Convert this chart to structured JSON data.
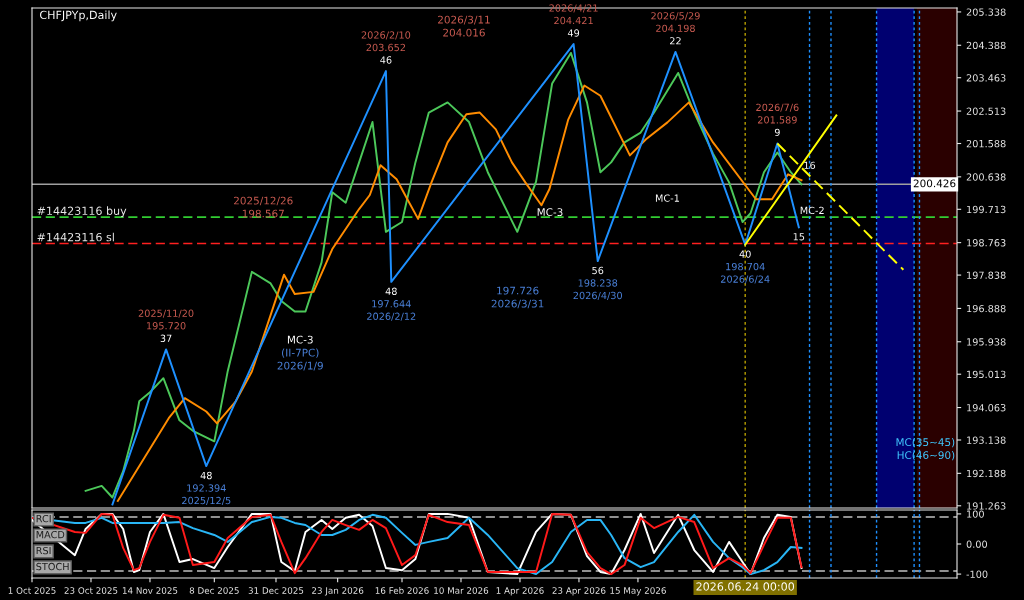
{
  "chart_data": [
    {
      "type": "line",
      "title": "CHFJPYp,Daily",
      "x": [
        "2025-10-21",
        "2025-10-27",
        "2025-10-31",
        "2025-11-04",
        "2025-11-08",
        "2025-11-10",
        "2025-11-14",
        "2025-11-19",
        "2025-11-25",
        "2025-11-30",
        "2025-12-08",
        "2025-12-13",
        "2025-12-22",
        "2025-12-29",
        "2026-01-02",
        "2026-01-07",
        "2026-01-11",
        "2026-01-17",
        "2026-01-21",
        "2026-01-26",
        "2026-01-31",
        "2026-02-05",
        "2026-02-10",
        "2026-02-16",
        "2026-02-21",
        "2026-02-26",
        "2026-03-05",
        "2026-03-13",
        "2026-03-20",
        "2026-03-31",
        "2026-04-07",
        "2026-04-13",
        "2026-04-20",
        "2026-04-26",
        "2026-05-01",
        "2026-05-05",
        "2026-05-10",
        "2026-05-16",
        "2026-05-21",
        "2026-05-30",
        "2026-06-05",
        "2026-06-12",
        "2026-06-18",
        "2026-06-23",
        "2026-06-26",
        "2026-07-01",
        "2026-07-06",
        "2026-07-11",
        "2026-07-15"
      ],
      "series": [
        {
          "color": "#4cc85a",
          "values": [
            191.69,
            191.83,
            191.5,
            192.25,
            193.4,
            194.24,
            194.5,
            194.9,
            193.7,
            193.4,
            193.1,
            195.1,
            197.93,
            197.6,
            197.1,
            196.8,
            196.8,
            198.2,
            200.2,
            199.9,
            201.05,
            202.2,
            199.07,
            199.35,
            201.05,
            202.47,
            202.76,
            202.2,
            200.77,
            199.07,
            200.5,
            203.3,
            204.17,
            202.76,
            200.77,
            201.05,
            201.62,
            201.9,
            202.47,
            203.6,
            202.47,
            201.3,
            200.48,
            199.35,
            199.6,
            200.77,
            201.33,
            200.77,
            200.426
          ]
        },
        {
          "color": "#ff8c00",
          "x": [
            "2025-11-02",
            "2025-11-21",
            "2025-11-27",
            "2025-12-05",
            "2025-12-09",
            "2025-12-16",
            "2025-12-22",
            "2026-01-03",
            "2026-01-07",
            "2026-01-14",
            "2026-01-21",
            "2026-01-31",
            "2026-02-04",
            "2026-02-08",
            "2026-02-14",
            "2026-02-18",
            "2026-02-22",
            "2026-02-27",
            "2026-03-05",
            "2026-03-12",
            "2026-03-17",
            "2026-03-23",
            "2026-03-29",
            "2026-04-03",
            "2026-04-09",
            "2026-04-12",
            "2026-04-19",
            "2026-04-25",
            "2026-05-01",
            "2026-05-12",
            "2026-05-18",
            "2026-05-26",
            "2026-06-03",
            "2026-06-12",
            "2026-06-28",
            "2026-07-04",
            "2026-07-10",
            "2026-07-15"
          ],
          "values": [
            191.4,
            193.76,
            194.33,
            193.95,
            193.61,
            194.24,
            195.09,
            197.85,
            197.3,
            197.36,
            198.58,
            199.72,
            200.12,
            200.97,
            200.57,
            200.0,
            199.44,
            200.48,
            201.62,
            202.42,
            202.47,
            201.99,
            201.05,
            200.48,
            199.83,
            200.29,
            202.27,
            203.24,
            202.95,
            201.25,
            201.71,
            202.19,
            202.76,
            201.62,
            200.0,
            200.0,
            200.71,
            200.54
          ]
        },
        {
          "color": "#1e90ff",
          "x": [
            "2025-10-31",
            "2025-11-20",
            "2025-12-05",
            "2026-02-10",
            "2026-02-12",
            "2026-04-21",
            "2026-04-30",
            "2026-05-29",
            "2026-06-24",
            "2026-07-06",
            "2026-07-14"
          ],
          "values": [
            191.3,
            195.72,
            192.394,
            203.652,
            197.644,
            204.421,
            198.238,
            204.198,
            198.704,
            201.589,
            199.2
          ]
        },
        {
          "color": "#ffff00",
          "x": [
            "2026-06-24",
            "2026-07-28"
          ],
          "values": [
            198.704,
            202.39
          ]
        },
        {
          "color": "#ffff00",
          "line_style": "dashed",
          "x": [
            "2026-07-06",
            "2026-08-22"
          ],
          "values": [
            201.589,
            197.99
          ]
        }
      ],
      "xlim": [
        "2025-10-01",
        "2026-09-11"
      ],
      "ylim": [
        191.2,
        205.45
      ],
      "yticks": [
        205.338,
        204.388,
        203.463,
        202.513,
        201.588,
        200.638,
        199.713,
        198.763,
        197.838,
        196.888,
        195.938,
        195.013,
        194.063,
        193.138,
        192.188,
        191.263
      ],
      "tick_labels": "y",
      "grid": false,
      "ref_lines": [
        {
          "axis": "y",
          "value": 200.426,
          "label": "200.426",
          "color": "#a0a0a0",
          "line_style": "solid"
        },
        {
          "axis": "y",
          "value": 199.49,
          "label": "#14423116 buy",
          "color": "#32cd32",
          "line_style": "dashed"
        },
        {
          "axis": "y",
          "value": 198.74,
          "label": "#14423116 sl",
          "color": "#ff2020",
          "line_style": "dashed"
        },
        {
          "axis": "x",
          "value": "2026-06-24",
          "color": "#b8a000",
          "line_style": "dotted"
        },
        {
          "axis": "x",
          "value": "2026-07-18",
          "color": "#1e90ff",
          "line_style": "dotted"
        },
        {
          "axis": "x",
          "value": "2026-07-26",
          "color": "#1e90ff",
          "line_style": "dotted"
        },
        {
          "axis": "x",
          "value": "2026-08-12",
          "color": "#1e90ff",
          "line_style": "dotted"
        },
        {
          "axis": "x",
          "value": "2026-08-26",
          "color": "#1e90ff",
          "line_style": "dotted"
        },
        {
          "axis": "x",
          "value": "2026-08-28",
          "color": "#1e90ff",
          "line_style": "dotted"
        }
      ],
      "bands": [
        {
          "axis": "x",
          "from": "2026-08-12",
          "to": "2026-08-26",
          "color": "#000070"
        },
        {
          "axis": "x",
          "from": "2026-08-27",
          "to": "2026-09-11",
          "color": "#2a0000"
        }
      ],
      "annotations": [
        {
          "text": "2025/11/20\n195.720\n37",
          "x": "2025-11-20",
          "y": 195.72
        },
        {
          "text": "48\n192.394\n2025/12/5",
          "x": "2025-12-05",
          "y": 192.394
        },
        "2025/12/26\n198.567",
        "MC-3\n(II-7PC)\n2026/1/9",
        {
          "text": "2026/2/10\n203.652\n46",
          "x": "2026-02-10",
          "y": 203.652
        },
        {
          "text": "48\n197.644\n2026/2/12",
          "x": "2026-02-12",
          "y": 197.644
        },
        "2026/3/11\n204.016",
        "197.726\n2026/3/31",
        "MC-3",
        {
          "text": "2026/4/21\n204.421\n49",
          "x": "2026-04-21",
          "y": 204.421
        },
        {
          "text": "56\n198.238\n2026/4/30",
          "x": "2026-04-30",
          "y": 198.238
        },
        {
          "text": "2026/5/29\n204.198\n22",
          "x": "2026-05-29",
          "y": 204.198
        },
        {
          "text": "MC-1",
          "x": "2026-05-26",
          "y": 200.3
        },
        {
          "text": "40\n198.704\n2026/6/24",
          "x": "2026-06-24",
          "y": 198.704
        },
        {
          "text": "2026/7/6\n201.589\n9",
          "x": "2026-07-06",
          "y": 201.589
        },
        {
          "text": "15",
          "x": "2026-07-14",
          "y": 199.2
        },
        {
          "text": "16",
          "x": "2026-07-18",
          "y": 200.65
        },
        {
          "text": "MC-2",
          "x": "2026-07-19",
          "y": 199.95
        },
        "MC(35~45)\nHC(46~90)"
      ]
    },
    {
      "type": "line",
      "x": [
        "2025-10-01",
        "2025-10-17",
        "2025-10-21",
        "2025-10-27",
        "2025-10-31",
        "2025-11-04",
        "2025-11-08",
        "2025-11-10",
        "2025-11-14",
        "2025-11-19",
        "2025-11-25",
        "2025-11-30",
        "2025-12-08",
        "2025-12-13",
        "2025-12-22",
        "2025-12-29",
        "2026-01-02",
        "2026-01-07",
        "2026-01-11",
        "2026-01-17",
        "2026-01-21",
        "2026-01-26",
        "2026-01-31",
        "2026-02-05",
        "2026-02-10",
        "2026-02-16",
        "2026-02-21",
        "2026-02-26",
        "2026-03-05",
        "2026-03-13",
        "2026-03-20",
        "2026-03-31",
        "2026-04-07",
        "2026-04-13",
        "2026-04-20",
        "2026-04-26",
        "2026-05-01",
        "2026-05-05",
        "2026-05-10",
        "2026-05-16",
        "2026-05-21",
        "2026-05-30",
        "2026-06-05",
        "2026-06-12",
        "2026-06-18",
        "2026-06-23",
        "2026-06-26",
        "2026-07-01",
        "2026-07-06",
        "2026-07-11",
        "2026-07-15"
      ],
      "series": [
        {
          "color": "#ffffff",
          "values": [
            80,
            -37,
            50,
            100,
            100,
            50,
            -93,
            -87,
            40,
            100,
            -60,
            -50,
            -80,
            -10,
            100,
            100,
            -60,
            -90,
            40,
            80,
            50,
            87,
            97,
            60,
            -80,
            -87,
            -50,
            100,
            100,
            87,
            -93,
            -100,
            40,
            100,
            97,
            -40,
            -93,
            -100,
            -20,
            100,
            -30,
            97,
            -20,
            -93,
            7,
            -60,
            -100,
            20,
            97,
            90,
            -80
          ]
        },
        {
          "color": "#29b6f6",
          "values": [
            87,
            70,
            70,
            87,
            70,
            70,
            70,
            70,
            70,
            70,
            73,
            53,
            30,
            7,
            73,
            90,
            87,
            70,
            63,
            30,
            30,
            47,
            80,
            97,
            87,
            37,
            -3,
            7,
            20,
            87,
            30,
            -80,
            -100,
            -60,
            40,
            80,
            80,
            30,
            -47,
            -77,
            -60,
            40,
            97,
            7,
            -47,
            -77,
            -100,
            -87,
            -60,
            -10,
            -13
          ]
        },
        {
          "color": "#ff1a1a",
          "values": [
            87,
            40,
            37,
            100,
            97,
            -13,
            -87,
            -80,
            7,
            97,
            87,
            -70,
            -60,
            20,
            90,
            97,
            7,
            -97,
            -47,
            40,
            80,
            63,
            47,
            80,
            53,
            -70,
            -37,
            97,
            73,
            63,
            -93,
            -93,
            -93,
            100,
            97,
            -27,
            -80,
            -100,
            -70,
            87,
            53,
            90,
            73,
            -80,
            -47,
            -70,
            -97,
            -3,
            87,
            87,
            -77
          ]
        }
      ],
      "xlim": [
        "2025-10-01",
        "2026-09-11"
      ],
      "ylim": [
        -113,
        113
      ],
      "yticks": [
        100,
        {
          "value": 0,
          "label": "0.00"
        },
        -100
      ],
      "xticks": [
        {
          "value": "2025-10-01",
          "label": "1 Oct 2025"
        },
        {
          "value": "2025-10-23",
          "label": "23 Oct 2025"
        },
        {
          "value": "2025-11-14",
          "label": "14 Nov 2025"
        },
        {
          "value": "2025-12-08",
          "label": "8 Dec 2025"
        },
        {
          "value": "2025-12-31",
          "label": "31 Dec 2025"
        },
        {
          "value": "2026-01-23",
          "label": "23 Jan 2026"
        },
        {
          "value": "2026-02-16",
          "label": "16 Feb 2026"
        },
        {
          "value": "2026-03-10",
          "label": "10 Mar 2026"
        },
        {
          "value": "2026-04-01",
          "label": "1 Apr 2026"
        },
        {
          "value": "2026-04-23",
          "label": "23 Apr 2026"
        },
        {
          "value": "2026-05-15",
          "label": "15 May 2026"
        }
      ],
      "grid": false,
      "ref_lines": [
        {
          "axis": "y",
          "value": 90,
          "color": "#c0c0c0",
          "line_style": "dashed"
        },
        {
          "axis": "y",
          "value": -90,
          "color": "#c0c0c0",
          "line_style": "dashed"
        },
        {
          "axis": "x",
          "value": "2026-06-24",
          "label": "2026.06.24 00:00",
          "color": "#b8a000",
          "line_style": "dotted"
        },
        {
          "axis": "x",
          "value": "2026-07-18",
          "color": "#1e90ff",
          "line_style": "dotted"
        },
        {
          "axis": "x",
          "value": "2026-07-26",
          "color": "#1e90ff",
          "line_style": "dotted"
        },
        {
          "axis": "x",
          "value": "2026-08-12",
          "color": "#1e90ff",
          "line_style": "dotted"
        },
        {
          "axis": "x",
          "value": "2026-08-26",
          "color": "#1e90ff",
          "line_style": "dotted"
        },
        {
          "axis": "x",
          "value": "2026-08-28",
          "color": "#1e90ff",
          "line_style": "dotted"
        }
      ],
      "annotations": [
        "RCI",
        "MACD",
        "RSI",
        "STOCH"
      ]
    }
  ]
}
